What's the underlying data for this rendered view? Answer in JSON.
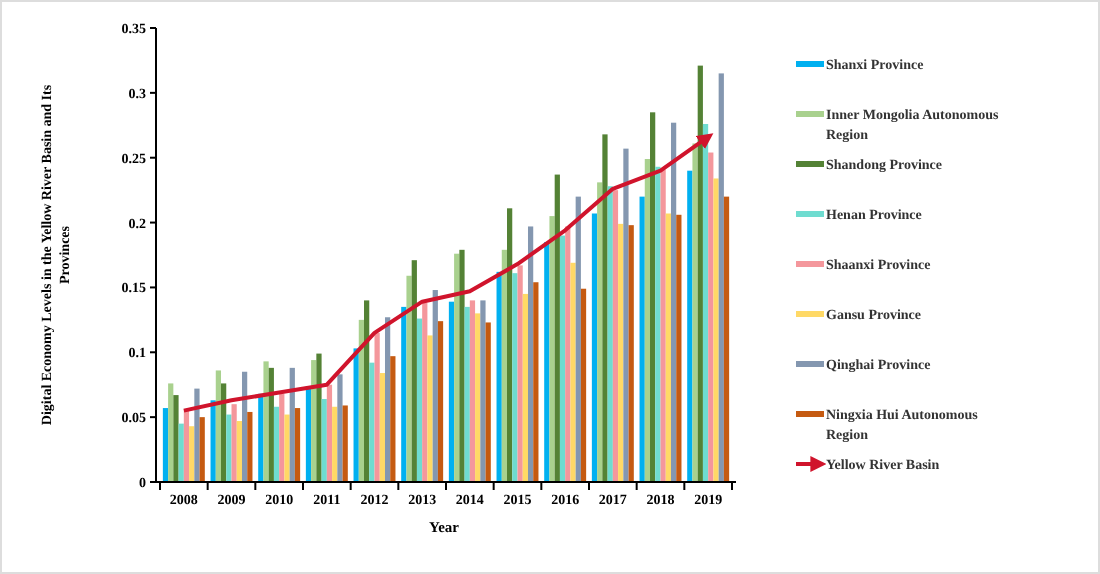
{
  "chart_data": {
    "type": "bar",
    "xlabel": "Year",
    "ylabel": "Digital Economy Levels in the Yellow River Basin and Its Provinces",
    "categories": [
      "2008",
      "2009",
      "2010",
      "2011",
      "2012",
      "2013",
      "2014",
      "2015",
      "2016",
      "2017",
      "2018",
      "2019"
    ],
    "ylim": [
      0,
      0.35
    ],
    "yticks": [
      0,
      0.05,
      0.1,
      0.15,
      0.2,
      0.25,
      0.3,
      0.35
    ],
    "grid": false,
    "legend": "right",
    "series": [
      {
        "name": "Shanxi Province",
        "color": "#00b0f0",
        "values": [
          0.057,
          0.063,
          0.068,
          0.074,
          0.103,
          0.135,
          0.139,
          0.162,
          0.185,
          0.207,
          0.22,
          0.24
        ]
      },
      {
        "name": "Inner Mongolia Autonomous Region",
        "color": "#a9d18e",
        "values": [
          0.076,
          0.086,
          0.093,
          0.094,
          0.125,
          0.159,
          0.176,
          0.179,
          0.205,
          0.231,
          0.249,
          0.261
        ]
      },
      {
        "name": "Shandong Province",
        "color": "#548235",
        "values": [
          0.067,
          0.076,
          0.088,
          0.099,
          0.14,
          0.171,
          0.179,
          0.211,
          0.237,
          0.268,
          0.285,
          0.321
        ]
      },
      {
        "name": "Henan Province",
        "color": "#6fdcd0",
        "values": [
          0.045,
          0.052,
          0.058,
          0.064,
          0.092,
          0.126,
          0.135,
          0.161,
          0.19,
          0.228,
          0.243,
          0.276
        ]
      },
      {
        "name": "Shaanxi Province",
        "color": "#f4979c",
        "values": [
          0.055,
          0.06,
          0.068,
          0.075,
          0.115,
          0.138,
          0.14,
          0.167,
          0.197,
          0.225,
          0.241,
          0.254
        ]
      },
      {
        "name": "Gansu Province",
        "color": "#ffd966",
        "values": [
          0.043,
          0.047,
          0.052,
          0.058,
          0.084,
          0.113,
          0.13,
          0.145,
          0.169,
          0.199,
          0.207,
          0.234
        ]
      },
      {
        "name": "Qinghai Province",
        "color": "#8497b0",
        "values": [
          0.072,
          0.085,
          0.088,
          0.083,
          0.127,
          0.148,
          0.14,
          0.197,
          0.22,
          0.257,
          0.277,
          0.315
        ]
      },
      {
        "name": "Ningxia Hui Autonomous Region",
        "color": "#c55a11",
        "values": [
          0.05,
          0.054,
          0.057,
          0.059,
          0.097,
          0.124,
          0.123,
          0.154,
          0.149,
          0.198,
          0.206,
          0.22
        ]
      },
      {
        "name": "Yellow River Basin",
        "color": "#d0142c",
        "type": "line",
        "marker": "none",
        "values": [
          0.055,
          0.063,
          0.069,
          0.075,
          0.115,
          0.139,
          0.147,
          0.168,
          0.194,
          0.226,
          0.24,
          0.266
        ]
      }
    ]
  }
}
